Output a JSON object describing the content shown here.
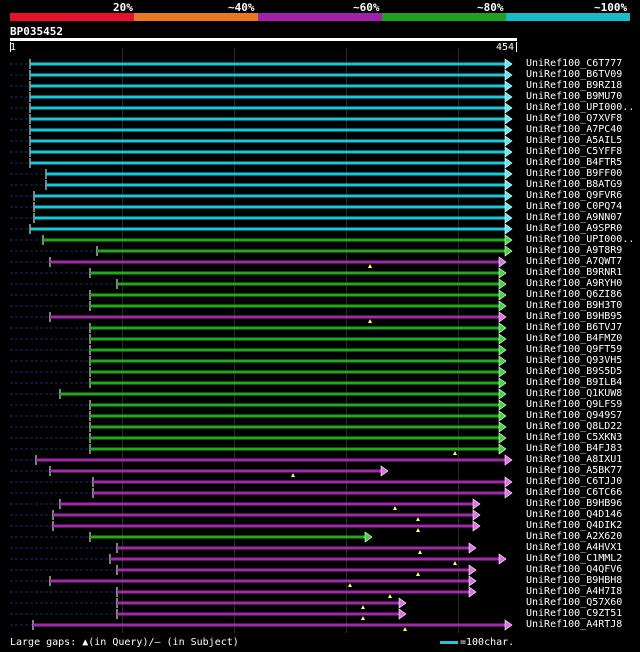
{
  "legend": {
    "colors": [
      "#e8112d",
      "#e87722",
      "#a020a8",
      "#22a022",
      "#18bcc8"
    ],
    "labels": [
      {
        "text": "20%",
        "x": 113
      },
      {
        "text": "~40%",
        "x": 228
      },
      {
        "text": "~60%",
        "x": 353
      },
      {
        "text": "~80%",
        "x": 477
      },
      {
        "text": "~100%",
        "x": 594
      }
    ]
  },
  "query": {
    "id": "BP035452",
    "start": "1",
    "end": "454"
  },
  "footer": {
    "gaps_text": "Large gaps: ▲(in Query)/– (in Subject)",
    "scale_text": "=100char."
  },
  "hits": [
    {
      "label": "UniRef100_C6T777",
      "color": "cyan",
      "s": 30,
      "e": 512
    },
    {
      "label": "UniRef100_B6TV09",
      "color": "cyan",
      "s": 30,
      "e": 512
    },
    {
      "label": "UniRef100_B9RZ18",
      "color": "cyan",
      "s": 30,
      "e": 512
    },
    {
      "label": "UniRef100_B9MU70",
      "color": "cyan",
      "s": 30,
      "e": 512
    },
    {
      "label": "UniRef100_UPI000..",
      "color": "cyan",
      "s": 30,
      "e": 512
    },
    {
      "label": "UniRef100_Q7XVF8",
      "color": "cyan",
      "s": 30,
      "e": 512
    },
    {
      "label": "UniRef100_A7PC40",
      "color": "cyan",
      "s": 30,
      "e": 512
    },
    {
      "label": "UniRef100_A5AIL5",
      "color": "cyan",
      "s": 30,
      "e": 512
    },
    {
      "label": "UniRef100_C5YFF8",
      "color": "cyan",
      "s": 30,
      "e": 512
    },
    {
      "label": "UniRef100_B4FTR5",
      "color": "cyan",
      "s": 30,
      "e": 512
    },
    {
      "label": "UniRef100_B9FF00",
      "color": "cyan",
      "s": 46,
      "e": 512
    },
    {
      "label": "UniRef100_B8ATG9",
      "color": "cyan",
      "s": 46,
      "e": 512
    },
    {
      "label": "UniRef100_Q9FVR6",
      "color": "cyan",
      "s": 34,
      "e": 512
    },
    {
      "label": "UniRef100_C0PQ74",
      "color": "cyan",
      "s": 34,
      "e": 512
    },
    {
      "label": "UniRef100_A9NN07",
      "color": "cyan",
      "s": 34,
      "e": 512
    },
    {
      "label": "UniRef100_A9SPR0",
      "color": "cyan",
      "s": 30,
      "e": 512
    },
    {
      "label": "UniRef100_UPI000..",
      "color": "green",
      "s": 43,
      "e": 512
    },
    {
      "label": "UniRef100_A9T8R9",
      "color": "green",
      "s": 97,
      "e": 512
    },
    {
      "label": "UniRef100_A7QWT7",
      "color": "purple",
      "s": 50,
      "e": 506,
      "mq": 370
    },
    {
      "label": "UniRef100_B9RNR1",
      "color": "green",
      "s": 90,
      "e": 506
    },
    {
      "label": "UniRef100_A9RYH0",
      "color": "green",
      "s": 117,
      "e": 506
    },
    {
      "label": "UniRef100_Q6ZI86",
      "color": "green",
      "s": 90,
      "e": 506
    },
    {
      "label": "UniRef100_B9H3T0",
      "color": "green",
      "s": 90,
      "e": 506
    },
    {
      "label": "UniRef100_B9HB95",
      "color": "purple",
      "s": 50,
      "e": 506,
      "mq": 370
    },
    {
      "label": "UniRef100_B6TVJ7",
      "color": "green",
      "s": 90,
      "e": 506
    },
    {
      "label": "UniRef100_B4FMZ0",
      "color": "green",
      "s": 90,
      "e": 506
    },
    {
      "label": "UniRef100_Q9FT59",
      "color": "green",
      "s": 90,
      "e": 506
    },
    {
      "label": "UniRef100_Q93VH5",
      "color": "green",
      "s": 90,
      "e": 506
    },
    {
      "label": "UniRef100_B9S5D5",
      "color": "green",
      "s": 90,
      "e": 506
    },
    {
      "label": "UniRef100_B9ILB4",
      "color": "green",
      "s": 90,
      "e": 506
    },
    {
      "label": "UniRef100_Q1KUW8",
      "color": "green",
      "s": 60,
      "e": 506
    },
    {
      "label": "UniRef100_Q9LFS9",
      "color": "green",
      "s": 90,
      "e": 506
    },
    {
      "label": "UniRef100_Q949S7",
      "color": "green",
      "s": 90,
      "e": 506
    },
    {
      "label": "UniRef100_Q8LD22",
      "color": "green",
      "s": 90,
      "e": 506
    },
    {
      "label": "UniRef100_C5XKN3",
      "color": "green",
      "s": 90,
      "e": 506
    },
    {
      "label": "UniRef100_B4FJ83",
      "color": "green",
      "s": 90,
      "e": 506,
      "mq": 455
    },
    {
      "label": "UniRef100_A8IXU1",
      "color": "purple",
      "s": 36,
      "e": 512
    },
    {
      "label": "UniRef100_A5BK77",
      "color": "purple",
      "s": 50,
      "e": 388,
      "mq": 293
    },
    {
      "label": "UniRef100_C6TJJ0",
      "color": "purple",
      "s": 93,
      "e": 512
    },
    {
      "label": "UniRef100_C6TC66",
      "color": "purple",
      "s": 93,
      "e": 512
    },
    {
      "label": "UniRef100_B9HB96",
      "color": "purple",
      "s": 60,
      "e": 480,
      "mq": 395
    },
    {
      "label": "UniRef100_Q4D146",
      "color": "purple",
      "s": 53,
      "e": 480,
      "mq": 418
    },
    {
      "label": "UniRef100_Q4DIK2",
      "color": "purple",
      "s": 53,
      "e": 480,
      "mq": 418
    },
    {
      "label": "UniRef100_A2X620",
      "color": "green",
      "s": 90,
      "e": 372
    },
    {
      "label": "UniRef100_A4HVX1",
      "color": "purple",
      "s": 117,
      "e": 476,
      "mq": 420
    },
    {
      "label": "UniRef100_C1MML2",
      "color": "purple",
      "s": 110,
      "e": 506,
      "mq": 455
    },
    {
      "label": "UniRef100_Q4QFV6",
      "color": "purple",
      "s": 117,
      "e": 476,
      "mq": 418
    },
    {
      "label": "UniRef100_B9HBH8",
      "color": "purple",
      "s": 50,
      "e": 476,
      "mq": 350
    },
    {
      "label": "UniRef100_A4H7I8",
      "color": "purple",
      "s": 117,
      "e": 476,
      "mq": 390
    },
    {
      "label": "UniRef100_Q57X60",
      "color": "purple",
      "s": 117,
      "e": 406,
      "mq": 363
    },
    {
      "label": "UniRef100_C9ZT51",
      "color": "purple",
      "s": 117,
      "e": 406,
      "mq": 363
    },
    {
      "label": "UniRef100_A4RTJ8",
      "color": "purple",
      "s": 33,
      "e": 512,
      "mq": 405
    }
  ]
}
